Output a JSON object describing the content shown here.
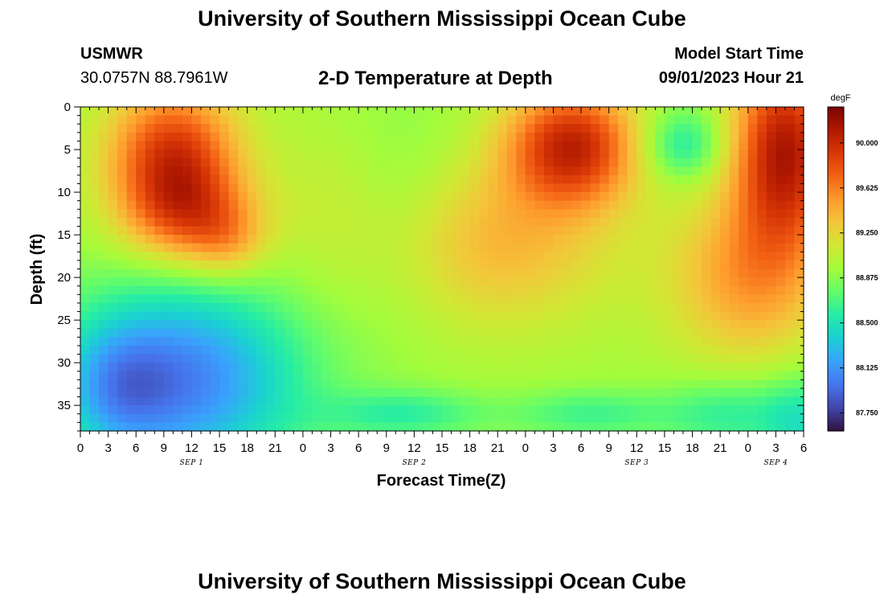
{
  "header": {
    "title": "University of Southern Mississippi Ocean Cube",
    "station": "USMWR",
    "coords": "30.0757N  88.7961W",
    "subtitle": "2-D Temperature at Depth",
    "model_label": "Model Start Time",
    "model_time": "09/01/2023 Hour 21"
  },
  "footer": {
    "title": "University of Southern Mississippi Ocean Cube"
  },
  "chart_data": {
    "type": "heatmap",
    "title": "2-D Temperature at Depth",
    "xlabel": "Forecast Time(Z)",
    "ylabel": "Depth (ft)",
    "colorbar_unit": "degF",
    "x_ticks": [
      "0",
      "3",
      "6",
      "9",
      "12",
      "15",
      "18",
      "21",
      "0",
      "3",
      "6",
      "9",
      "12",
      "15",
      "18",
      "21",
      "0",
      "3",
      "6",
      "9",
      "12",
      "15",
      "18",
      "21",
      "0",
      "3",
      "6"
    ],
    "x_hours_range": [
      0,
      78
    ],
    "x_date_labels": [
      {
        "label": "SEP 1",
        "hour": 12
      },
      {
        "label": "SEP 2",
        "hour": 36
      },
      {
        "label": "SEP 3",
        "hour": 60
      },
      {
        "label": "SEP 4",
        "hour": 75
      }
    ],
    "y_ticks": [
      0,
      5,
      10,
      15,
      20,
      25,
      30,
      35
    ],
    "y_range": [
      0,
      38
    ],
    "colorbar_ticks": [
      "90.000",
      "89.625",
      "89.250",
      "88.875",
      "88.500",
      "88.125",
      "87.750"
    ],
    "colorbar_range": [
      87.6,
      90.3
    ],
    "colors": [
      "#30123b",
      "#4145ab",
      "#4675ed",
      "#39a2fc",
      "#1bcfd4",
      "#24eca6",
      "#61fc6c",
      "#a4fc3b",
      "#d1e834",
      "#f3c63a",
      "#fe9b2d",
      "#f36315",
      "#d93806",
      "#b11901",
      "#7a0403"
    ],
    "hotspots": [
      {
        "t": 10,
        "d": 6,
        "amp": 1.0,
        "sx": 5,
        "sy": 6
      },
      {
        "t": 12,
        "d": 13,
        "amp": 0.55,
        "sx": 5,
        "sy": 4
      },
      {
        "t": 16,
        "d": 16,
        "amp": 0.3,
        "sx": 3,
        "sy": 3
      },
      {
        "t": 53,
        "d": 4.5,
        "amp": 1.05,
        "sx": 5,
        "sy": 5
      },
      {
        "t": 76,
        "d": 5,
        "amp": 1.15,
        "sx": 4,
        "sy": 8
      },
      {
        "t": 72,
        "d": 20,
        "amp": 0.55,
        "sx": 6,
        "sy": 7
      },
      {
        "t": 45,
        "d": 16,
        "amp": 0.45,
        "sx": 9,
        "sy": 7
      },
      {
        "t": 30,
        "d": 12,
        "amp": 0.2,
        "sx": 6,
        "sy": 8
      },
      {
        "t": 65,
        "d": 4.5,
        "amp": -0.45,
        "sx": 3,
        "sy": 3
      },
      {
        "t": 34,
        "d": 12,
        "amp": -0.25,
        "sx": 5,
        "sy": 9
      },
      {
        "t": 11,
        "d": 32,
        "amp": -0.9,
        "sx": 9,
        "sy": 8
      },
      {
        "t": 4,
        "d": 33,
        "amp": -0.35,
        "sx": 4,
        "sy": 5
      },
      {
        "t": 35,
        "d": 36,
        "amp": -0.35,
        "sx": 6,
        "sy": 2
      },
      {
        "t": 55,
        "d": 36,
        "amp": -0.3,
        "sx": 6,
        "sy": 2
      },
      {
        "t": 70,
        "d": 36,
        "amp": -0.35,
        "sx": 5,
        "sy": 3
      },
      {
        "t": 78,
        "d": 37,
        "amp": -0.4,
        "sx": 3,
        "sy": 4
      }
    ],
    "baseline": 88.95
  }
}
